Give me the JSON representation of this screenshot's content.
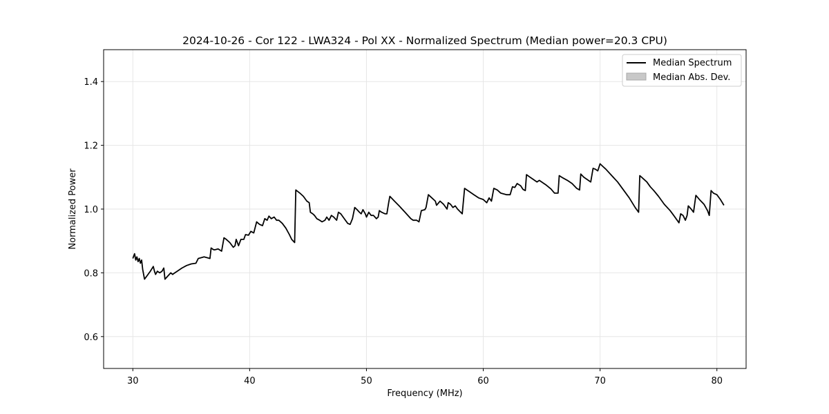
{
  "chart_data": {
    "type": "line",
    "title": "2024-10-26 - Cor 122 - LWA324 - Pol XX - Normalized Spectrum (Median power=20.3 CPU)",
    "xlabel": "Frequency (MHz)",
    "ylabel": "Normalized Power",
    "xlim": [
      27.5,
      82.5
    ],
    "ylim": [
      0.5,
      1.5
    ],
    "x_ticks": [
      30,
      40,
      50,
      60,
      70,
      80
    ],
    "x_tick_labels": [
      "30",
      "40",
      "50",
      "60",
      "70",
      "80"
    ],
    "y_ticks": [
      0.6,
      0.8,
      1.0,
      1.2,
      1.4
    ],
    "y_tick_labels": [
      "0.6",
      "0.8",
      "1.0",
      "1.2",
      "1.4"
    ],
    "grid": true,
    "legend_position": "top-right",
    "legend": [
      {
        "label": "Median Spectrum",
        "kind": "line",
        "color": "#000000"
      },
      {
        "label": "Median Abs. Dev.",
        "kind": "patch",
        "color": "#c8c8c8"
      }
    ],
    "series": [
      {
        "name": "Median Spectrum",
        "color": "#000000",
        "points": [
          [
            30.0,
            0.845
          ],
          [
            30.15,
            0.86
          ],
          [
            30.25,
            0.84
          ],
          [
            30.35,
            0.85
          ],
          [
            30.45,
            0.835
          ],
          [
            30.55,
            0.845
          ],
          [
            30.65,
            0.83
          ],
          [
            30.75,
            0.84
          ],
          [
            30.85,
            0.81
          ],
          [
            31.0,
            0.78
          ],
          [
            31.2,
            0.79
          ],
          [
            31.5,
            0.805
          ],
          [
            31.75,
            0.82
          ],
          [
            31.85,
            0.805
          ],
          [
            31.95,
            0.795
          ],
          [
            32.1,
            0.805
          ],
          [
            32.3,
            0.8
          ],
          [
            32.5,
            0.805
          ],
          [
            32.65,
            0.815
          ],
          [
            32.75,
            0.78
          ],
          [
            33.0,
            0.79
          ],
          [
            33.25,
            0.8
          ],
          [
            33.4,
            0.795
          ],
          [
            33.6,
            0.8
          ],
          [
            33.8,
            0.805
          ],
          [
            34.2,
            0.815
          ],
          [
            34.6,
            0.823
          ],
          [
            35.0,
            0.828
          ],
          [
            35.4,
            0.83
          ],
          [
            35.6,
            0.845
          ],
          [
            35.9,
            0.848
          ],
          [
            36.1,
            0.85
          ],
          [
            36.5,
            0.846
          ],
          [
            36.6,
            0.845
          ],
          [
            36.7,
            0.878
          ],
          [
            36.9,
            0.873
          ],
          [
            37.0,
            0.872
          ],
          [
            37.3,
            0.875
          ],
          [
            37.6,
            0.868
          ],
          [
            37.8,
            0.91
          ],
          [
            38.0,
            0.905
          ],
          [
            38.3,
            0.895
          ],
          [
            38.6,
            0.88
          ],
          [
            38.75,
            0.885
          ],
          [
            38.85,
            0.905
          ],
          [
            39.05,
            0.885
          ],
          [
            39.25,
            0.905
          ],
          [
            39.5,
            0.905
          ],
          [
            39.65,
            0.92
          ],
          [
            39.9,
            0.918
          ],
          [
            40.1,
            0.93
          ],
          [
            40.35,
            0.925
          ],
          [
            40.6,
            0.96
          ],
          [
            40.85,
            0.952
          ],
          [
            41.1,
            0.948
          ],
          [
            41.3,
            0.97
          ],
          [
            41.5,
            0.965
          ],
          [
            41.65,
            0.978
          ],
          [
            41.85,
            0.97
          ],
          [
            42.1,
            0.975
          ],
          [
            42.3,
            0.965
          ],
          [
            42.5,
            0.965
          ],
          [
            42.8,
            0.955
          ],
          [
            43.1,
            0.94
          ],
          [
            43.4,
            0.92
          ],
          [
            43.6,
            0.905
          ],
          [
            43.85,
            0.895
          ],
          [
            43.95,
            1.06
          ],
          [
            44.3,
            1.05
          ],
          [
            44.6,
            1.04
          ],
          [
            44.9,
            1.025
          ],
          [
            45.1,
            1.02
          ],
          [
            45.2,
            0.99
          ],
          [
            45.4,
            0.985
          ],
          [
            45.55,
            0.98
          ],
          [
            45.75,
            0.97
          ],
          [
            46.0,
            0.965
          ],
          [
            46.2,
            0.96
          ],
          [
            46.45,
            0.965
          ],
          [
            46.6,
            0.975
          ],
          [
            46.8,
            0.965
          ],
          [
            47.0,
            0.98
          ],
          [
            47.2,
            0.975
          ],
          [
            47.45,
            0.965
          ],
          [
            47.6,
            0.99
          ],
          [
            47.8,
            0.985
          ],
          [
            48.1,
            0.97
          ],
          [
            48.4,
            0.955
          ],
          [
            48.6,
            0.952
          ],
          [
            48.8,
            0.97
          ],
          [
            49.0,
            1.005
          ],
          [
            49.2,
            0.998
          ],
          [
            49.4,
            0.99
          ],
          [
            49.55,
            0.985
          ],
          [
            49.7,
            0.998
          ],
          [
            49.9,
            0.985
          ],
          [
            50.0,
            0.975
          ],
          [
            50.2,
            0.99
          ],
          [
            50.4,
            0.98
          ],
          [
            50.6,
            0.98
          ],
          [
            50.85,
            0.97
          ],
          [
            51.0,
            0.975
          ],
          [
            51.1,
            0.995
          ],
          [
            51.3,
            0.99
          ],
          [
            51.6,
            0.985
          ],
          [
            51.75,
            0.985
          ],
          [
            51.9,
            1.02
          ],
          [
            52.0,
            1.04
          ],
          [
            52.4,
            1.025
          ],
          [
            52.8,
            1.01
          ],
          [
            53.3,
            0.99
          ],
          [
            53.8,
            0.97
          ],
          [
            54.0,
            0.965
          ],
          [
            54.3,
            0.965
          ],
          [
            54.5,
            0.96
          ],
          [
            54.7,
            0.995
          ],
          [
            55.0,
            0.998
          ],
          [
            55.1,
            1.005
          ],
          [
            55.3,
            1.045
          ],
          [
            55.6,
            1.035
          ],
          [
            55.9,
            1.025
          ],
          [
            56.0,
            1.012
          ],
          [
            56.3,
            1.025
          ],
          [
            56.6,
            1.015
          ],
          [
            56.9,
            1.0
          ],
          [
            57.0,
            1.02
          ],
          [
            57.2,
            1.015
          ],
          [
            57.4,
            1.005
          ],
          [
            57.6,
            1.01
          ],
          [
            57.8,
            1.0
          ],
          [
            58.2,
            0.985
          ],
          [
            58.4,
            1.065
          ],
          [
            58.8,
            1.055
          ],
          [
            59.2,
            1.045
          ],
          [
            59.6,
            1.035
          ],
          [
            60.0,
            1.03
          ],
          [
            60.3,
            1.02
          ],
          [
            60.5,
            1.035
          ],
          [
            60.7,
            1.025
          ],
          [
            60.9,
            1.065
          ],
          [
            61.2,
            1.06
          ],
          [
            61.5,
            1.05
          ],
          [
            62.0,
            1.045
          ],
          [
            62.3,
            1.045
          ],
          [
            62.5,
            1.07
          ],
          [
            62.7,
            1.068
          ],
          [
            62.9,
            1.08
          ],
          [
            63.2,
            1.073
          ],
          [
            63.4,
            1.062
          ],
          [
            63.6,
            1.058
          ],
          [
            63.7,
            1.108
          ],
          [
            64.0,
            1.1
          ],
          [
            64.4,
            1.09
          ],
          [
            64.6,
            1.085
          ],
          [
            64.8,
            1.09
          ],
          [
            65.0,
            1.085
          ],
          [
            65.4,
            1.075
          ],
          [
            65.8,
            1.063
          ],
          [
            66.1,
            1.05
          ],
          [
            66.4,
            1.05
          ],
          [
            66.5,
            1.105
          ],
          [
            66.8,
            1.098
          ],
          [
            67.2,
            1.09
          ],
          [
            67.6,
            1.08
          ],
          [
            68.0,
            1.065
          ],
          [
            68.25,
            1.06
          ],
          [
            68.35,
            1.11
          ],
          [
            68.6,
            1.1
          ],
          [
            69.0,
            1.09
          ],
          [
            69.2,
            1.085
          ],
          [
            69.4,
            1.128
          ],
          [
            69.6,
            1.125
          ],
          [
            69.8,
            1.12
          ],
          [
            70.0,
            1.142
          ],
          [
            70.2,
            1.135
          ],
          [
            70.5,
            1.125
          ],
          [
            71.0,
            1.105
          ],
          [
            71.5,
            1.085
          ],
          [
            72.0,
            1.06
          ],
          [
            72.5,
            1.035
          ],
          [
            73.0,
            1.005
          ],
          [
            73.3,
            0.99
          ],
          [
            73.4,
            1.105
          ],
          [
            73.7,
            1.095
          ],
          [
            74.0,
            1.085
          ],
          [
            74.3,
            1.07
          ],
          [
            74.6,
            1.058
          ],
          [
            75.0,
            1.04
          ],
          [
            75.5,
            1.015
          ],
          [
            76.0,
            0.995
          ],
          [
            76.3,
            0.98
          ],
          [
            76.6,
            0.965
          ],
          [
            76.75,
            0.957
          ],
          [
            76.9,
            0.985
          ],
          [
            77.1,
            0.98
          ],
          [
            77.3,
            0.965
          ],
          [
            77.45,
            0.98
          ],
          [
            77.55,
            1.01
          ],
          [
            77.8,
            1.0
          ],
          [
            78.0,
            0.99
          ],
          [
            78.2,
            1.043
          ],
          [
            78.5,
            1.03
          ],
          [
            78.9,
            1.015
          ],
          [
            79.2,
            0.995
          ],
          [
            79.35,
            0.98
          ],
          [
            79.5,
            1.058
          ],
          [
            79.7,
            1.05
          ],
          [
            80.0,
            1.045
          ],
          [
            80.3,
            1.03
          ],
          [
            80.6,
            1.012
          ]
        ]
      }
    ]
  }
}
